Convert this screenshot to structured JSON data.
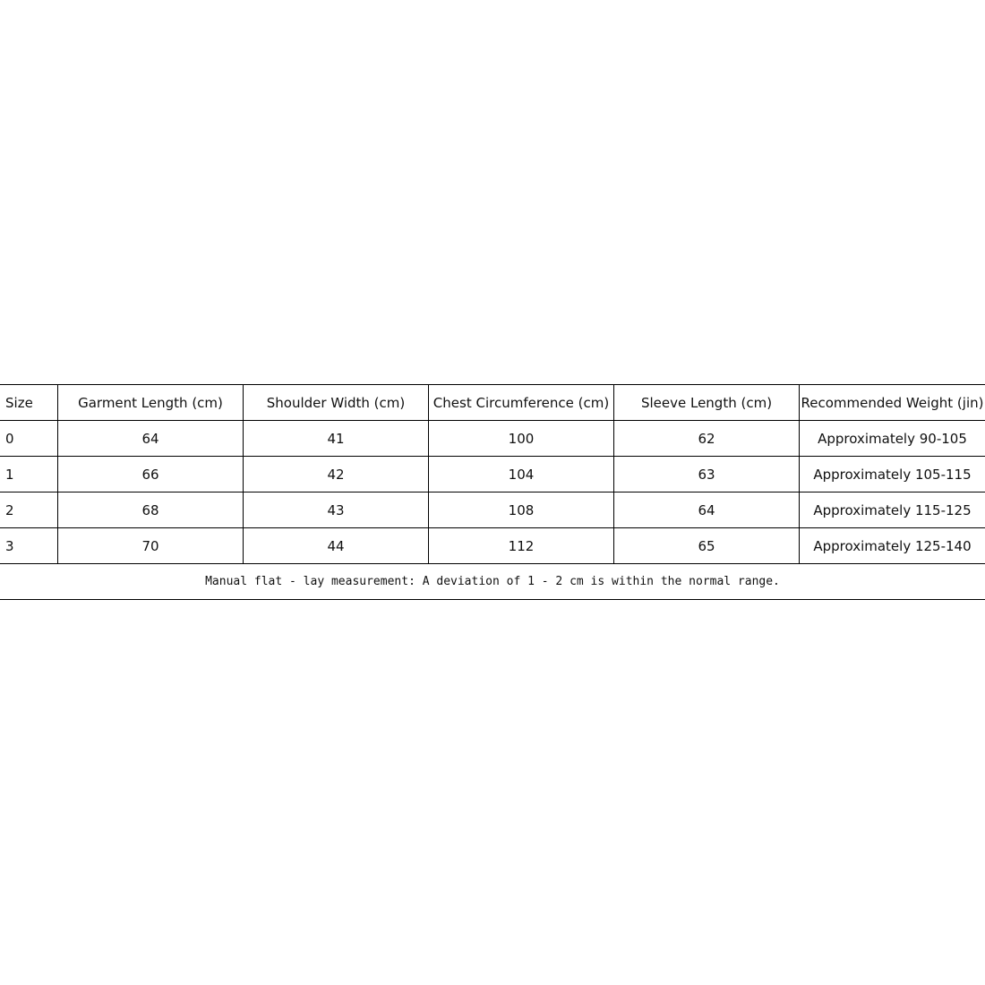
{
  "size_chart": {
    "headers": [
      "Size",
      "Garment Length (cm)",
      "Shoulder Width (cm)",
      "Chest Circumference (cm)",
      "Sleeve Length (cm)",
      "Recommended Weight (jin)"
    ],
    "rows": [
      [
        "0",
        "64",
        "41",
        "100",
        "62",
        "Approximately 90-105"
      ],
      [
        "1",
        "66",
        "42",
        "104",
        "63",
        "Approximately 105-115"
      ],
      [
        "2",
        "68",
        "43",
        "108",
        "64",
        "Approximately 115-125"
      ],
      [
        "3",
        "70",
        "44",
        "112",
        "65",
        "Approximately 125-140"
      ]
    ],
    "note": "Manual flat - lay measurement: A deviation of 1 - 2 cm is within the normal range."
  }
}
